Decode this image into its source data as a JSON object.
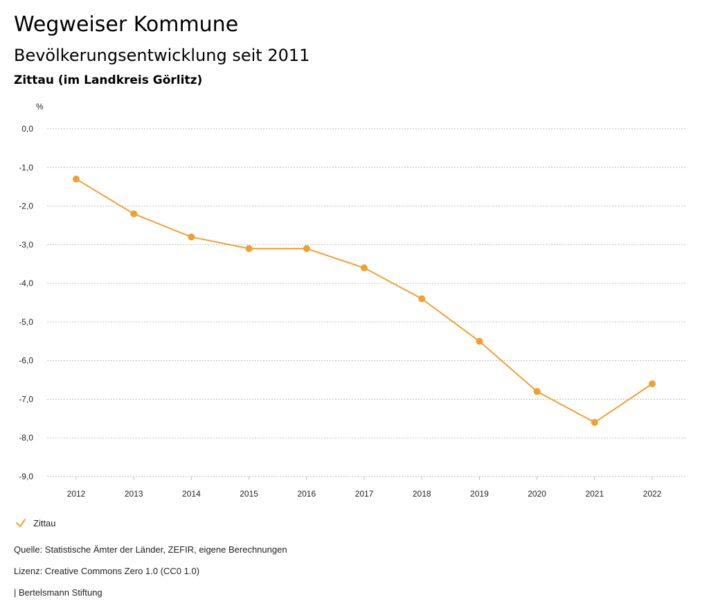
{
  "header": {
    "title": "Wegweiser Kommune",
    "subtitle": "Bevölkerungsentwicklung seit 2011",
    "region": "Zittau (im Landkreis Görlitz)"
  },
  "colors": {
    "series": "#f0a030",
    "grid": "#bdbdbd",
    "text": "#222222"
  },
  "chart_data": {
    "type": "line",
    "title": "Bevölkerungsentwicklung seit 2011",
    "ylabel": "%",
    "xlabel": "",
    "x": [
      "2012",
      "2013",
      "2014",
      "2015",
      "2016",
      "2017",
      "2018",
      "2019",
      "2020",
      "2021",
      "2022"
    ],
    "ylim": [
      -9.0,
      0.0
    ],
    "yticks": [
      0,
      -1,
      -2,
      -3,
      -4,
      -5,
      -6,
      -7,
      -8,
      -9
    ],
    "ytick_labels": [
      "0,0",
      "-1,0",
      "-2,0",
      "-3,0",
      "-4,0",
      "-5,0",
      "-6,0",
      "-7,0",
      "-8,0",
      "-9,0"
    ],
    "grid": true,
    "legend_position": "bottom-left",
    "series": [
      {
        "name": "Zittau",
        "values": [
          -1.3,
          -2.2,
          -2.8,
          -3.1,
          -3.1,
          -3.6,
          -4.4,
          -5.5,
          -6.8,
          -7.6,
          -6.6
        ]
      }
    ]
  },
  "legend": {
    "label": "Zittau"
  },
  "footer": {
    "source": "Quelle: Statistische Ämter der Länder, ZEFIR, eigene Berechnungen",
    "license": "Lizenz: Creative Commons Zero 1.0 (CC0 1.0)",
    "publisher": "| Bertelsmann Stiftung"
  }
}
